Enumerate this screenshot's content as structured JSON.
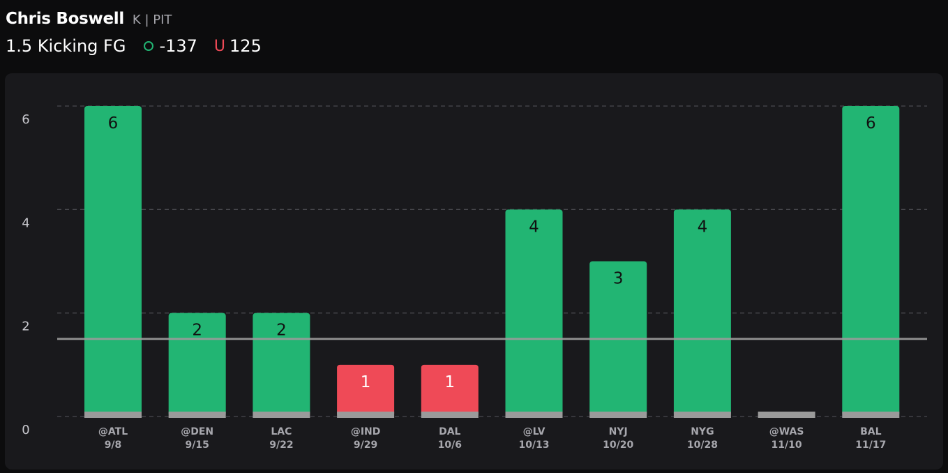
{
  "header": {
    "player_name": "Chris Boswell",
    "player_meta": "K | PIT",
    "prop_line": "1.5 Kicking FG",
    "over_label": "-137",
    "under_glyph": "U",
    "under_label": "125"
  },
  "colors": {
    "over": "#22b573",
    "under": "#ef4a57",
    "no_data": "#9a9a9a",
    "line": "#9a9a9a"
  },
  "chart_data": {
    "type": "bar",
    "categories": [
      "@ATL",
      "@DEN",
      "LAC",
      "@IND",
      "DAL",
      "@LV",
      "NYJ",
      "NYG",
      "@WAS",
      "BAL"
    ],
    "dates": [
      "9/8",
      "9/15",
      "9/22",
      "9/29",
      "10/6",
      "10/13",
      "10/20",
      "10/28",
      "11/10",
      "11/17"
    ],
    "values": [
      6,
      2,
      2,
      1,
      1,
      4,
      3,
      4,
      null,
      6
    ],
    "threshold": 1.5,
    "yticks": [
      0,
      2,
      4,
      6
    ],
    "ylim": [
      0,
      6
    ],
    "grid": true
  }
}
